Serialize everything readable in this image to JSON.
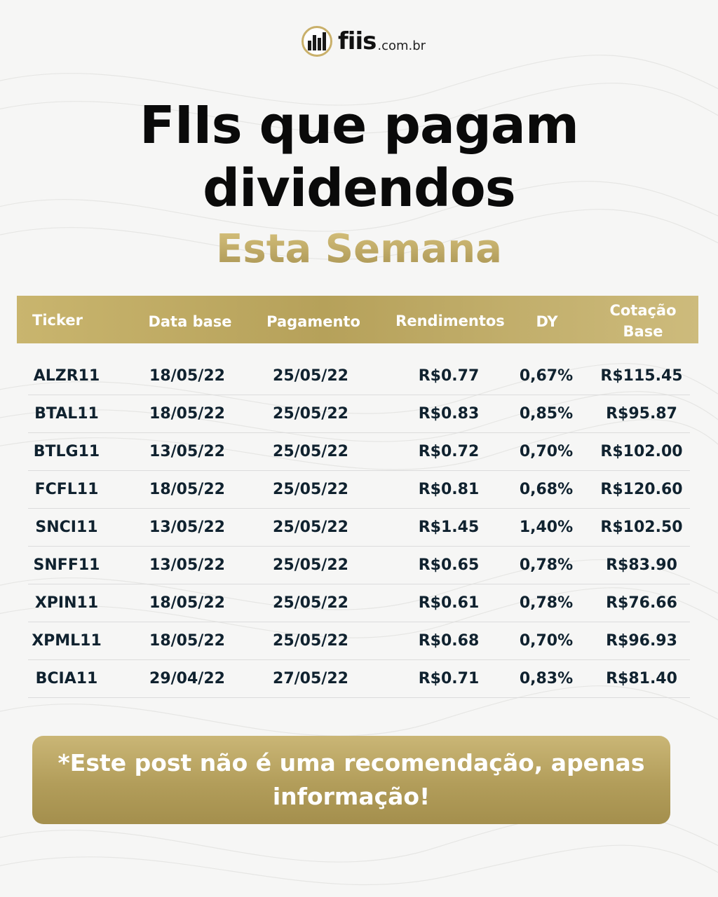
{
  "logo": {
    "name": "fiis",
    "domain": ".com.br"
  },
  "title_line1": "FIIs que pagam",
  "title_line2": "dividendos",
  "subtitle": "Esta Semana",
  "table": {
    "headers": {
      "ticker": "Ticker",
      "data_base": "Data base",
      "pagamento": "Pagamento",
      "rendimentos": "Rendimentos",
      "dy": "DY",
      "cotacao_line1": "Cotação",
      "cotacao_line2": "Base"
    },
    "rows": [
      [
        "ALZR11",
        "18/05/22",
        "25/05/22",
        "R$0.77",
        "0,67%",
        "R$115.45"
      ],
      [
        "BTAL11",
        "18/05/22",
        "25/05/22",
        "R$0.83",
        "0,85%",
        "R$95.87"
      ],
      [
        "BTLG11",
        "13/05/22",
        "25/05/22",
        "R$0.72",
        "0,70%",
        "R$102.00"
      ],
      [
        "FCFL11",
        "18/05/22",
        "25/05/22",
        "R$0.81",
        "0,68%",
        "R$120.60"
      ],
      [
        "SNCI11",
        "13/05/22",
        "25/05/22",
        "R$1.45",
        "1,40%",
        "R$102.50"
      ],
      [
        "SNFF11",
        "13/05/22",
        "25/05/22",
        "R$0.65",
        "0,78%",
        "R$83.90"
      ],
      [
        "XPIN11",
        "18/05/22",
        "25/05/22",
        "R$0.61",
        "0,78%",
        "R$76.66"
      ],
      [
        "XPML11",
        "18/05/22",
        "25/05/22",
        "R$0.68",
        "0,70%",
        "R$96.93"
      ],
      [
        "BCIA11",
        "29/04/22",
        "27/05/22",
        "R$0.71",
        "0,83%",
        "R$81.40"
      ]
    ]
  },
  "disclaimer": "*Este post não é uma recomendação, apenas informação!",
  "colors": {
    "gold": "#c4ae68",
    "text_dark": "#10222f",
    "background": "#f6f6f5"
  },
  "icons": {
    "logo": "building-icon"
  }
}
